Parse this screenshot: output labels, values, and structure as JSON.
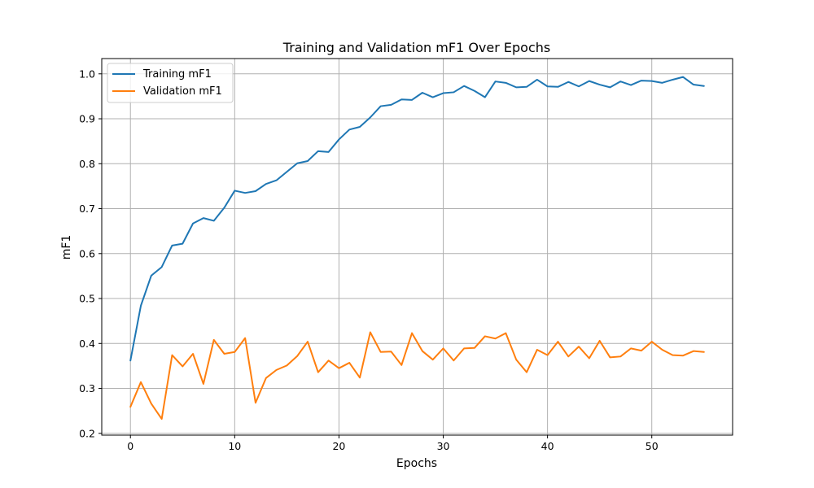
{
  "chart_data": {
    "type": "line",
    "title": "Training and Validation mF1 Over Epochs",
    "xlabel": "Epochs",
    "ylabel": "mF1",
    "xlim": [
      -2.75,
      57.75
    ],
    "ylim": [
      0.196,
      1.034
    ],
    "xticks": [
      0,
      10,
      20,
      30,
      40,
      50
    ],
    "yticks": [
      0.2,
      0.3,
      0.4,
      0.5,
      0.6,
      0.7,
      0.8,
      0.9,
      1.0
    ],
    "xtick_labels": [
      "0",
      "10",
      "20",
      "30",
      "40",
      "50"
    ],
    "ytick_labels": [
      "0.2",
      "0.3",
      "0.4",
      "0.5",
      "0.6",
      "0.7",
      "0.8",
      "0.9",
      "1.0"
    ],
    "grid": true,
    "legend_position": "upper-left",
    "x": [
      0,
      1,
      2,
      3,
      4,
      5,
      6,
      7,
      8,
      9,
      10,
      11,
      12,
      13,
      14,
      15,
      16,
      17,
      18,
      19,
      20,
      21,
      22,
      23,
      24,
      25,
      26,
      27,
      28,
      29,
      30,
      31,
      32,
      33,
      34,
      35,
      36,
      37,
      38,
      39,
      40,
      41,
      42,
      43,
      44,
      45,
      46,
      47,
      48,
      49,
      50,
      51,
      52,
      53,
      54,
      55
    ],
    "series": [
      {
        "name": "Training mF1",
        "color": "#1f77b4",
        "values": [
          0.362,
          0.484,
          0.551,
          0.57,
          0.618,
          0.622,
          0.667,
          0.679,
          0.673,
          0.702,
          0.74,
          0.735,
          0.739,
          0.755,
          0.763,
          0.782,
          0.801,
          0.806,
          0.828,
          0.826,
          0.854,
          0.876,
          0.882,
          0.903,
          0.928,
          0.931,
          0.943,
          0.942,
          0.958,
          0.948,
          0.957,
          0.959,
          0.973,
          0.962,
          0.948,
          0.983,
          0.98,
          0.97,
          0.971,
          0.987,
          0.972,
          0.971,
          0.982,
          0.972,
          0.984,
          0.976,
          0.97,
          0.983,
          0.975,
          0.985,
          0.984,
          0.98,
          0.987,
          0.993,
          0.976,
          0.973
        ]
      },
      {
        "name": "Validation mF1",
        "color": "#ff7f0e",
        "values": [
          0.259,
          0.314,
          0.266,
          0.232,
          0.374,
          0.349,
          0.377,
          0.31,
          0.408,
          0.377,
          0.381,
          0.412,
          0.268,
          0.323,
          0.341,
          0.351,
          0.372,
          0.404,
          0.336,
          0.362,
          0.345,
          0.357,
          0.324,
          0.425,
          0.381,
          0.382,
          0.352,
          0.423,
          0.383,
          0.364,
          0.389,
          0.362,
          0.389,
          0.39,
          0.416,
          0.411,
          0.423,
          0.364,
          0.336,
          0.386,
          0.374,
          0.404,
          0.371,
          0.393,
          0.367,
          0.406,
          0.369,
          0.371,
          0.389,
          0.384,
          0.404,
          0.386,
          0.374,
          0.373,
          0.383,
          0.381
        ]
      }
    ]
  }
}
